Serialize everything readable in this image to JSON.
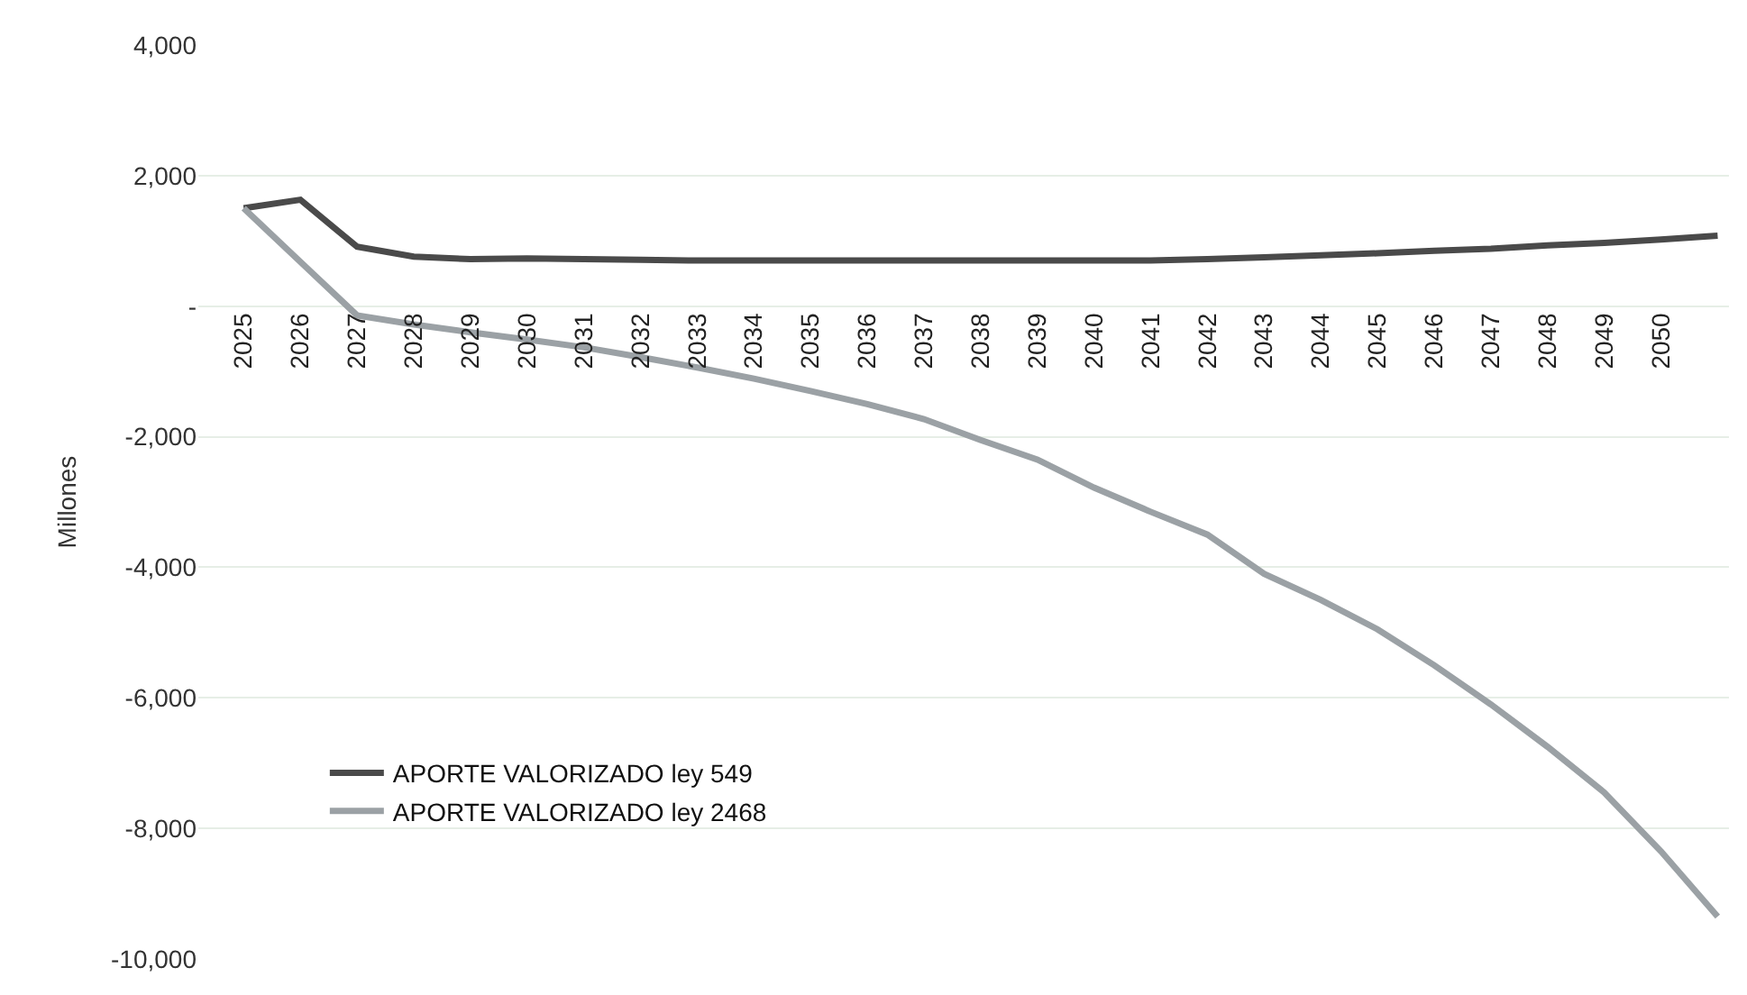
{
  "chart_data": {
    "type": "line",
    "ylabel": "Millones",
    "categories": [
      "2025",
      "2026",
      "2027",
      "2028",
      "2029",
      "2030",
      "2031",
      "2032",
      "2033",
      "2034",
      "2035",
      "2036",
      "2037",
      "2038",
      "2039",
      "2040",
      "2041",
      "2042",
      "2043",
      "2044",
      "2045",
      "2046",
      "2047",
      "2048",
      "2049",
      "2050",
      null
    ],
    "series": [
      {
        "name": "APORTE VALORIZADO ley 549",
        "color": "#4a4a4a",
        "values": [
          1500,
          1630,
          910,
          760,
          720,
          730,
          720,
          710,
          700,
          700,
          700,
          700,
          700,
          700,
          700,
          700,
          700,
          720,
          750,
          780,
          810,
          850,
          880,
          930,
          970,
          1020,
          1080
        ]
      },
      {
        "name": "APORTE VALORIZADO ley 2468",
        "color": "#9ba1a5",
        "values": [
          1500,
          680,
          -140,
          -280,
          -400,
          -510,
          -630,
          -780,
          -940,
          -1110,
          -1300,
          -1500,
          -1730,
          -2050,
          -2350,
          -2780,
          -3150,
          -3500,
          -4100,
          -4500,
          -4950,
          -5500,
          -6100,
          -6750,
          -7450,
          -8350,
          -9350
        ]
      }
    ],
    "ylim": [
      -10000,
      4000
    ],
    "yticks": [
      {
        "value": 4000,
        "label": "4,000"
      },
      {
        "value": 2000,
        "label": "2,000"
      },
      {
        "value": 0,
        "label": "-"
      },
      {
        "value": -2000,
        "label": "-2,000"
      },
      {
        "value": -4000,
        "label": "-4,000"
      },
      {
        "value": -6000,
        "label": "-6,000"
      },
      {
        "value": -8000,
        "label": "-8,000"
      },
      {
        "value": -10000,
        "label": "-10,000"
      }
    ],
    "grid": "y",
    "legend": "bottom left",
    "marker": "none",
    "line_style": "solid"
  }
}
